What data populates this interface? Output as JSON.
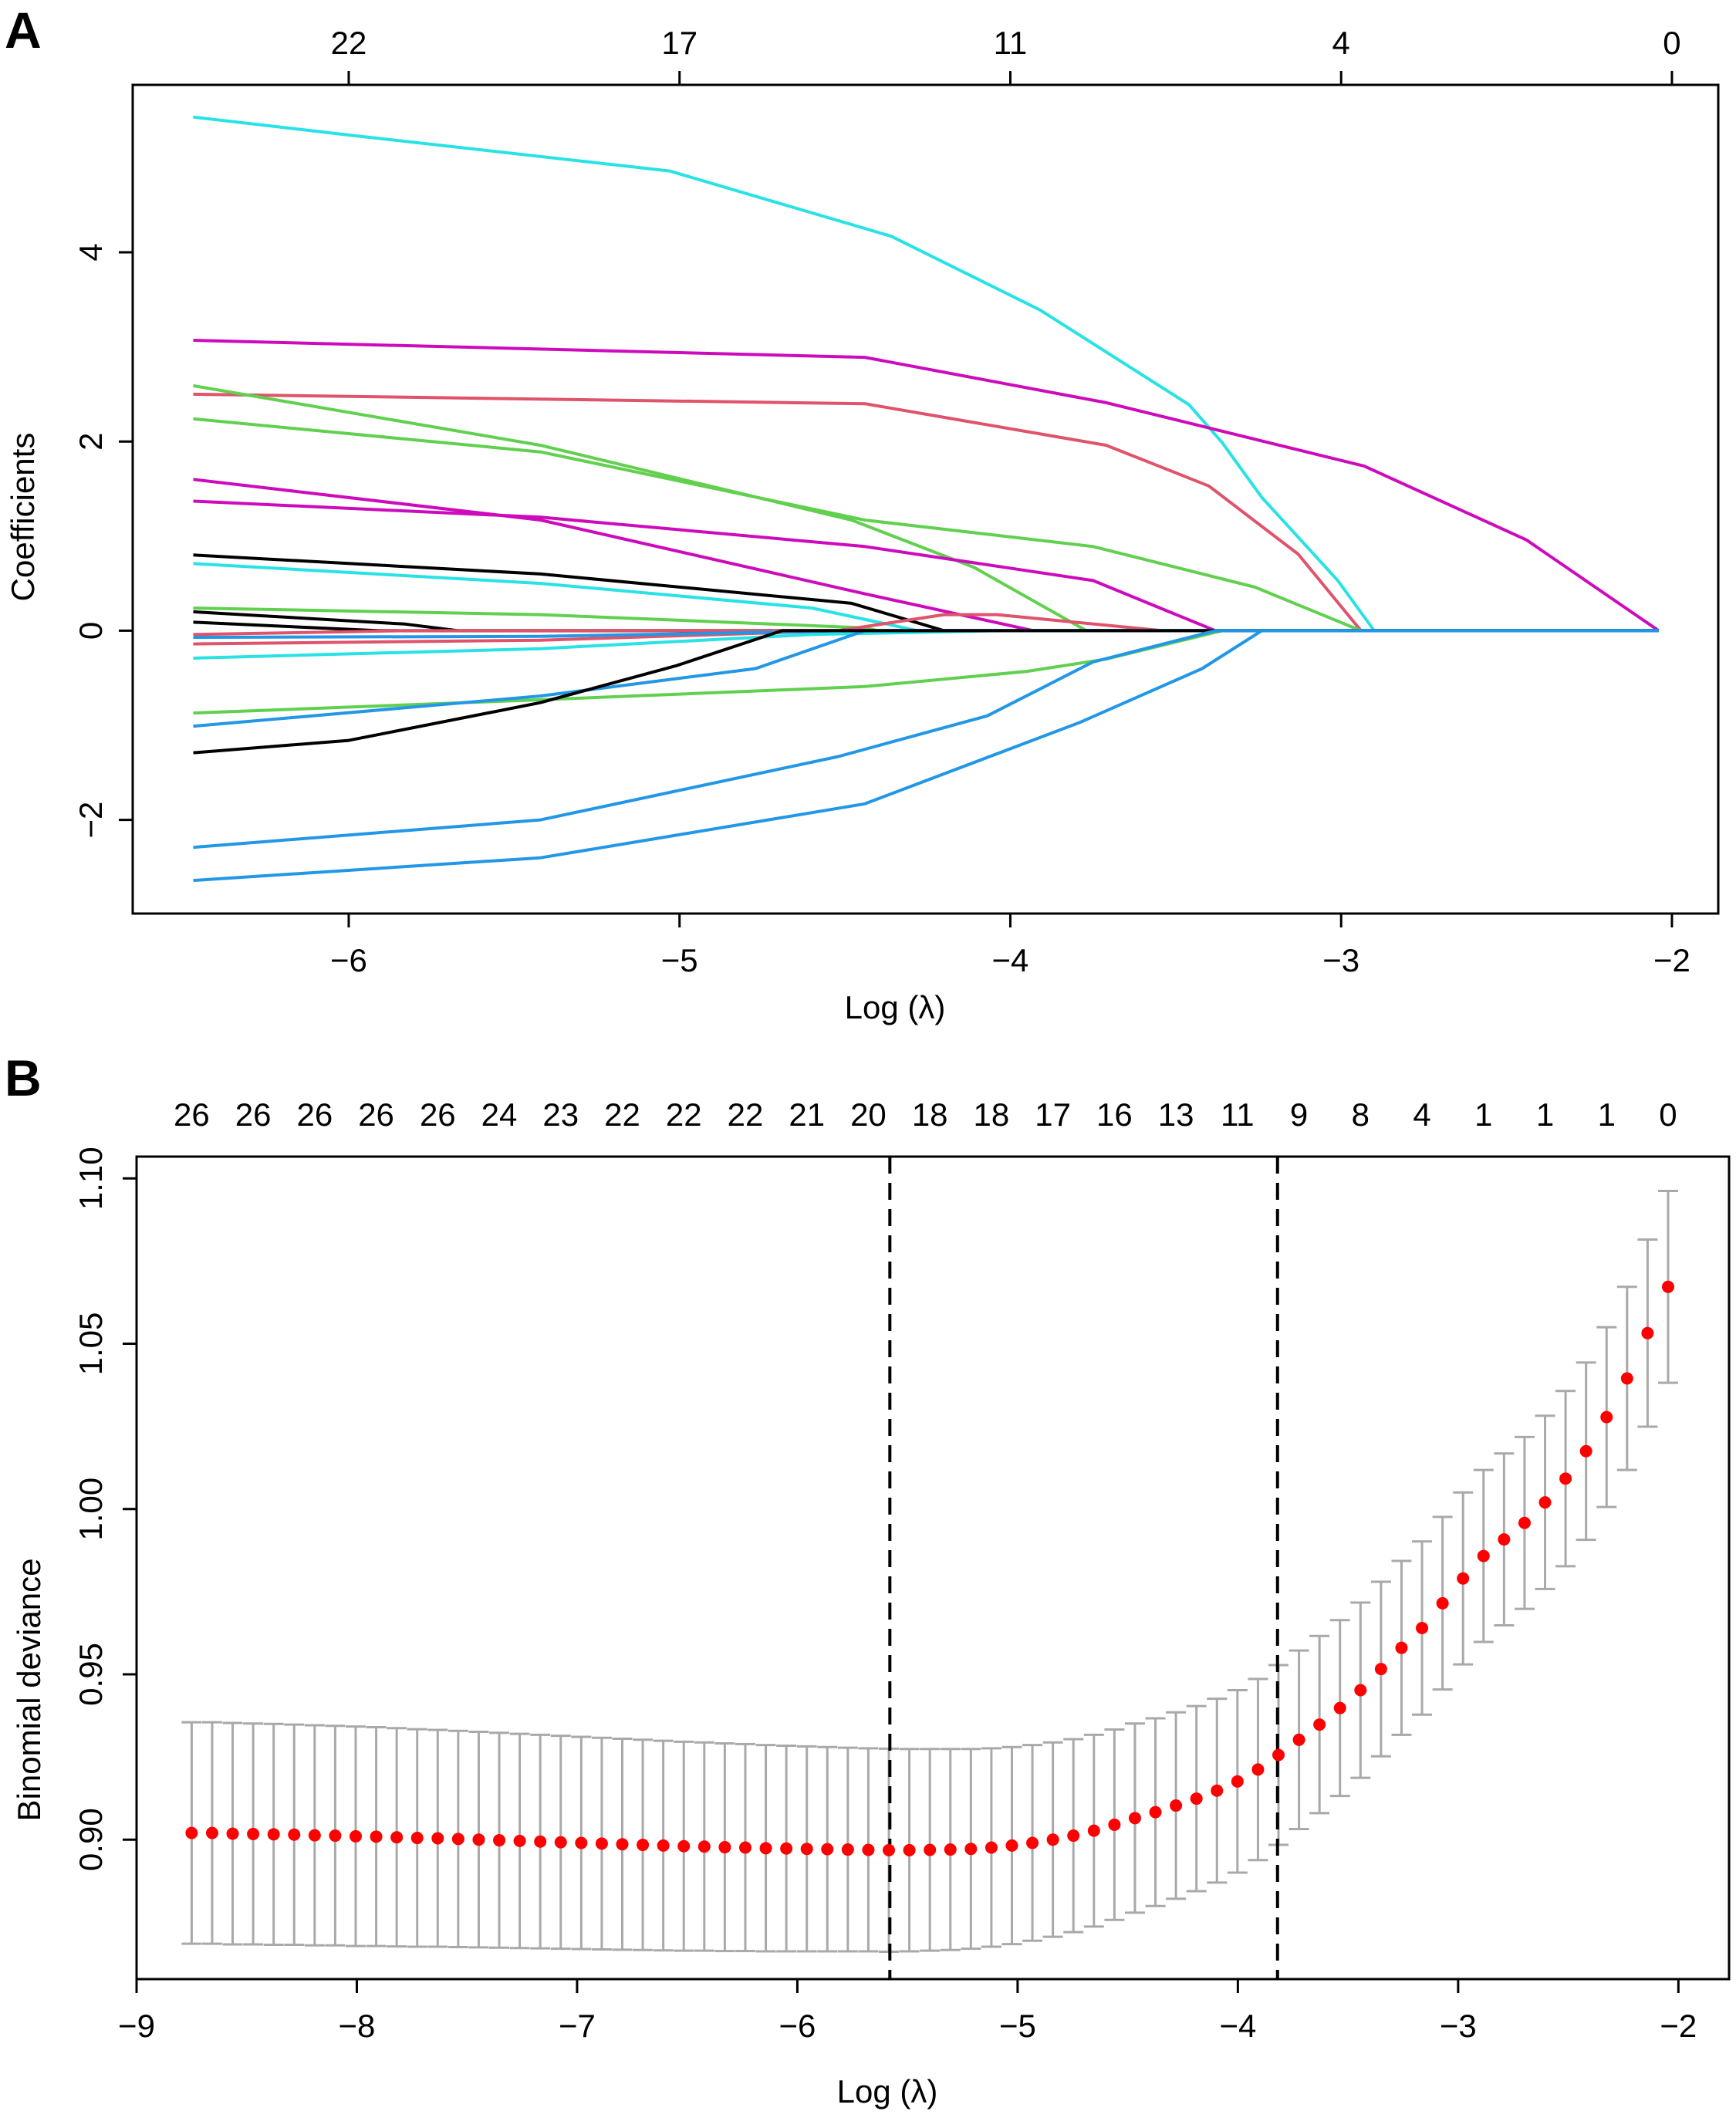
{
  "chart_data": [
    {
      "panel_label": "A",
      "type": "line",
      "xlabel": "Log (λ)",
      "ylabel": "Coefficients",
      "xlim": [
        -6.653,
        -1.86
      ],
      "ylim": [
        -2.99,
        5.77
      ],
      "x_ticks": [
        -6,
        -5,
        -4,
        -3,
        -2
      ],
      "x_tick_labels": [
        "−6",
        "−5",
        "−4",
        "−3",
        "−2"
      ],
      "y_ticks": [
        -2,
        0,
        2,
        4
      ],
      "y_tick_labels": [
        "−2",
        "0",
        "2",
        "4"
      ],
      "top_ticks": [
        -6,
        -5,
        -4,
        -3,
        -2
      ],
      "top_tick_labels": [
        "22",
        "17",
        "11",
        "4",
        "0"
      ],
      "end_x": -2.04,
      "series": [
        {
          "color": "#28E2E5",
          "points": [
            [
              -6.47,
              5.43
            ],
            [
              -6,
              5.24
            ],
            [
              -5.03,
              4.86
            ],
            [
              -4.36,
              4.17
            ],
            [
              -3.91,
              3.39
            ],
            [
              -3.46,
              2.39
            ],
            [
              -3.36,
              1.99
            ],
            [
              -3.24,
              1.41
            ],
            [
              -3.01,
              0.53
            ],
            [
              -2.9,
              0
            ]
          ]
        },
        {
          "color": "#CD0BBC",
          "points": [
            [
              -6.47,
              3.07
            ],
            [
              -4.44,
              2.89
            ],
            [
              -3.71,
              2.41
            ],
            [
              -2.93,
              1.74
            ],
            [
              -2.44,
              0.96
            ],
            [
              -2.04,
              0
            ]
          ]
        },
        {
          "color": "#DF536B",
          "points": [
            [
              -6.47,
              2.5
            ],
            [
              -4.44,
              2.4
            ],
            [
              -3.71,
              1.96
            ],
            [
              -3.4,
              1.53
            ],
            [
              -3.13,
              0.81
            ],
            [
              -2.94,
              0
            ]
          ]
        },
        {
          "color": "#61D04F",
          "points": [
            [
              -6.47,
              2.59
            ],
            [
              -5.42,
              1.96
            ],
            [
              -4.48,
              1.17
            ],
            [
              -4.11,
              0.67
            ],
            [
              -3.77,
              0
            ]
          ]
        },
        {
          "color": "#61D04F",
          "points": [
            [
              -6.47,
              2.24
            ],
            [
              -5.42,
              1.89
            ],
            [
              -4.44,
              1.17
            ],
            [
              -3.75,
              0.89
            ],
            [
              -3.26,
              0.46
            ],
            [
              -2.94,
              0
            ]
          ]
        },
        {
          "color": "#CD0BBC",
          "points": [
            [
              -6.47,
              1.6
            ],
            [
              -5.42,
              1.17
            ],
            [
              -4.44,
              0.39
            ],
            [
              -3.93,
              0
            ]
          ]
        },
        {
          "color": "#CD0BBC",
          "points": [
            [
              -6.47,
              1.37
            ],
            [
              -5.42,
              1.2
            ],
            [
              -4.44,
              0.89
            ],
            [
              -3.75,
              0.53
            ],
            [
              -3.38,
              0
            ]
          ]
        },
        {
          "color": "#000000",
          "points": [
            [
              -6.47,
              0.8
            ],
            [
              -5.42,
              0.6
            ],
            [
              -4.48,
              0.29
            ],
            [
              -4.2,
              0
            ]
          ]
        },
        {
          "color": "#28E2E5",
          "points": [
            [
              -6.47,
              0.71
            ],
            [
              -5.42,
              0.5
            ],
            [
              -4.6,
              0.24
            ],
            [
              -4.28,
              0
            ]
          ]
        },
        {
          "color": "#61D04F",
          "points": [
            [
              -6.47,
              0.24
            ],
            [
              -5.42,
              0.17
            ],
            [
              -4.44,
              0.03
            ],
            [
              -4.4,
              0
            ]
          ]
        },
        {
          "color": "#000000",
          "points": [
            [
              -6.47,
              0.2
            ],
            [
              -5.83,
              0.07
            ],
            [
              -5.67,
              0
            ]
          ]
        },
        {
          "color": "#000000",
          "points": [
            [
              -6.47,
              0.09
            ],
            [
              -5.91,
              0
            ]
          ]
        },
        {
          "color": "#DF536B",
          "points": [
            [
              -6.47,
              -0.14
            ],
            [
              -5.42,
              -0.1
            ],
            [
              -4.52,
              0
            ],
            [
              -4.2,
              0.17
            ],
            [
              -4.04,
              0.17
            ],
            [
              -3.54,
              0
            ]
          ]
        },
        {
          "color": "#DF536B",
          "points": [
            [
              -6.47,
              -0.04
            ],
            [
              -5.83,
              0
            ]
          ]
        },
        {
          "color": "#2297E6",
          "points": [
            [
              -6.47,
              -0.07
            ],
            [
              -5.42,
              -0.06
            ],
            [
              -4.48,
              0
            ]
          ]
        },
        {
          "color": "#28E2E5",
          "points": [
            [
              -6.47,
              -0.29
            ],
            [
              -5.42,
              -0.19
            ],
            [
              -4.6,
              -0.04
            ],
            [
              -4.03,
              0
            ]
          ]
        },
        {
          "color": "#61D04F",
          "points": [
            [
              -6.47,
              -0.87
            ],
            [
              -5.42,
              -0.73
            ],
            [
              -4.44,
              -0.59
            ],
            [
              -3.95,
              -0.43
            ],
            [
              -3.71,
              -0.3
            ],
            [
              -3.36,
              0
            ]
          ]
        },
        {
          "color": "#2297E6",
          "points": [
            [
              -6.47,
              -1.01
            ],
            [
              -5.42,
              -0.69
            ],
            [
              -4.77,
              -0.4
            ],
            [
              -4.44,
              0
            ]
          ]
        },
        {
          "color": "#000000",
          "points": [
            [
              -6.47,
              -1.29
            ],
            [
              -6,
              -1.16
            ],
            [
              -5.42,
              -0.76
            ],
            [
              -5.01,
              -0.37
            ],
            [
              -4.69,
              0
            ]
          ]
        },
        {
          "color": "#2297E6",
          "points": [
            [
              -6.47,
              -2.29
            ],
            [
              -5.42,
              -2.0
            ],
            [
              -4.52,
              -1.33
            ],
            [
              -4.07,
              -0.9
            ],
            [
              -3.75,
              -0.33
            ],
            [
              -3.38,
              0
            ]
          ]
        },
        {
          "color": "#2297E6",
          "points": [
            [
              -6.47,
              -2.64
            ],
            [
              -5.42,
              -2.4
            ],
            [
              -4.44,
              -1.83
            ],
            [
              -3.79,
              -0.97
            ],
            [
              -3.42,
              -0.4
            ],
            [
              -3.24,
              0
            ]
          ]
        }
      ]
    },
    {
      "panel_label": "B",
      "type": "scatter",
      "xlabel": "Log (λ)",
      "ylabel": "Binomial deviance",
      "xlim": [
        -9,
        -1.77
      ],
      "ylim": [
        0.8578,
        1.1066
      ],
      "x_ticks": [
        -9,
        -8,
        -7,
        -6,
        -5,
        -4,
        -3,
        -2
      ],
      "x_tick_labels": [
        "−9",
        "−8",
        "−7",
        "−6",
        "−5",
        "−4",
        "−3",
        "−2"
      ],
      "y_ticks": [
        0.9,
        0.95,
        1.0,
        1.05,
        1.1
      ],
      "y_tick_labels": [
        "0.90",
        "0.95",
        "1.00",
        "1.05",
        "1.10"
      ],
      "top_tick_labels": [
        "26",
        "26",
        "26",
        "26",
        "26",
        "24",
        "23",
        "22",
        "22",
        "22",
        "21",
        "20",
        "18",
        "18",
        "17",
        "16",
        "13",
        "11",
        "9",
        "8",
        "4",
        "1",
        "1",
        "1",
        "0"
      ],
      "x_start": -8.75,
      "x_step": 0.0931,
      "lambda_min_log": -5.58,
      "lambda_1se_log": -3.82,
      "point_color": "#FF0000",
      "errorbar_color": "#A9A9A9",
      "mean_deviance": [
        0.902,
        0.902,
        0.9018,
        0.9017,
        0.9016,
        0.9015,
        0.9013,
        0.9012,
        0.901,
        0.9009,
        0.9007,
        0.9005,
        0.9004,
        0.9002,
        0.9,
        0.8998,
        0.8996,
        0.8994,
        0.8992,
        0.899,
        0.8988,
        0.8986,
        0.8984,
        0.8982,
        0.898,
        0.8979,
        0.8977,
        0.8976,
        0.8974,
        0.8973,
        0.8972,
        0.8971,
        0.897,
        0.8969,
        0.8968,
        0.8968,
        0.8969,
        0.897,
        0.8972,
        0.8976,
        0.8982,
        0.899,
        0.9,
        0.9012,
        0.9027,
        0.9045,
        0.9065,
        0.9083,
        0.9103,
        0.9124,
        0.9148,
        0.9176,
        0.9212,
        0.9256,
        0.9302,
        0.9348,
        0.9398,
        0.9452,
        0.9516,
        0.958,
        0.964,
        0.9715,
        0.979,
        0.9858,
        0.9908,
        0.9958,
        1.002,
        1.0092,
        1.0175,
        1.0278,
        1.0395,
        1.0532,
        1.0672
      ],
      "std_error": [
        0.0335,
        0.0335,
        0.0335,
        0.0334,
        0.0334,
        0.0333,
        0.0333,
        0.0332,
        0.0332,
        0.0331,
        0.033,
        0.0329,
        0.0328,
        0.0327,
        0.0326,
        0.0325,
        0.0324,
        0.0323,
        0.0322,
        0.0321,
        0.032,
        0.0319,
        0.0318,
        0.0317,
        0.0316,
        0.0315,
        0.0314,
        0.0313,
        0.0312,
        0.0311,
        0.031,
        0.0309,
        0.0308,
        0.0307,
        0.0307,
        0.0306,
        0.0305,
        0.0304,
        0.0302,
        0.03,
        0.0298,
        0.0296,
        0.0294,
        0.0292,
        0.029,
        0.0288,
        0.0286,
        0.0284,
        0.0282,
        0.028,
        0.0278,
        0.0276,
        0.0274,
        0.0272,
        0.027,
        0.0268,
        0.0266,
        0.0265,
        0.0264,
        0.0263,
        0.0262,
        0.0261,
        0.026,
        0.026,
        0.026,
        0.026,
        0.0262,
        0.0265,
        0.0268,
        0.0272,
        0.0277,
        0.0283,
        0.029
      ]
    }
  ]
}
